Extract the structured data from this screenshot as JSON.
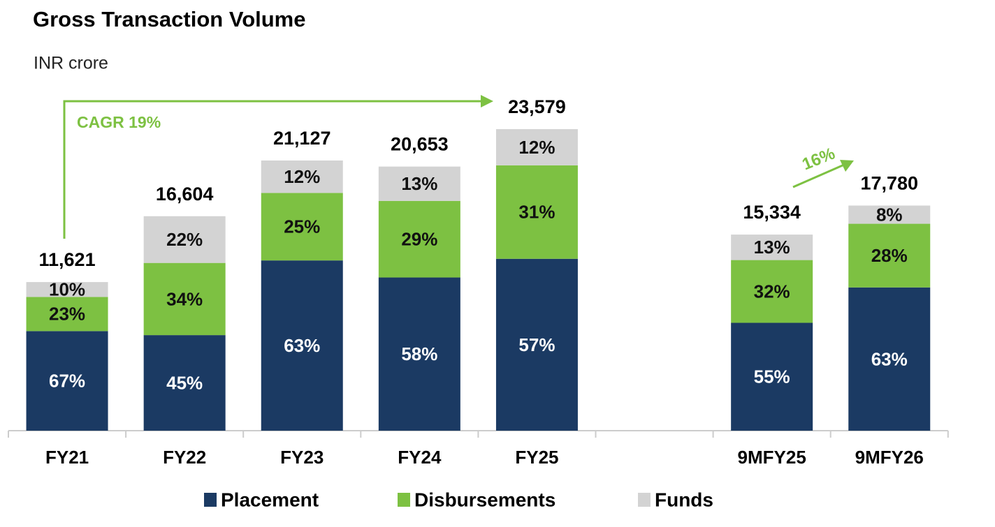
{
  "chart_data": {
    "type": "stacked_bar",
    "title": "Gross Transaction Volume",
    "subtitle": "INR crore",
    "categories": [
      "FY21",
      "FY22",
      "FY23",
      "FY24",
      "FY25",
      null,
      "9MFY25",
      "9MFY26"
    ],
    "series": [
      {
        "name": "Placement",
        "color": "#1b3a63",
        "values": [
          67,
          45,
          63,
          58,
          57,
          null,
          55,
          63
        ],
        "value_labels": [
          "67%",
          "45%",
          "63%",
          "58%",
          "57%",
          null,
          "55%",
          "63%"
        ]
      },
      {
        "name": "Disbursements",
        "color": "#7dc142",
        "values": [
          23,
          34,
          25,
          29,
          31,
          null,
          32,
          28
        ],
        "value_labels": [
          "23%",
          "34%",
          "25%",
          "29%",
          "31%",
          null,
          "32%",
          "28%"
        ]
      },
      {
        "name": "Funds",
        "color": "#d3d3d3",
        "values": [
          10,
          22,
          12,
          13,
          12,
          null,
          13,
          8
        ],
        "value_labels": [
          "10%",
          "22%",
          "12%",
          "13%",
          "12%",
          null,
          "13%",
          "8%"
        ]
      }
    ],
    "totals": {
      "values": [
        11621,
        16604,
        21127,
        20653,
        23579,
        null,
        15334,
        17780
      ],
      "value_labels": [
        "11,621",
        "16,604",
        "21,127",
        "20,653",
        "23,579",
        null,
        "15,334",
        "17,780"
      ]
    },
    "annotations": [
      "CAGR 19%",
      "16%"
    ],
    "annotation_color": "#7dc142"
  }
}
